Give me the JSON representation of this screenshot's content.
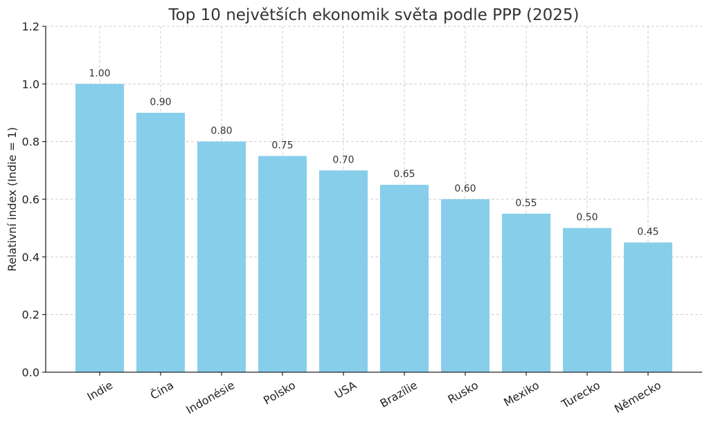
{
  "chart_data": {
    "type": "bar",
    "title": "Top 10 největších ekonomik světa podle PPP (2025)",
    "xlabel": "",
    "ylabel": "Relativní index (Indie = 1)",
    "categories": [
      "Indie",
      "Čína",
      "Indonésie",
      "Polsko",
      "USA",
      "Brazílie",
      "Rusko",
      "Mexiko",
      "Turecko",
      "Německo"
    ],
    "values": [
      1.0,
      0.9,
      0.8,
      0.75,
      0.7,
      0.65,
      0.6,
      0.55,
      0.5,
      0.45
    ],
    "data_labels": [
      "1.00",
      "0.90",
      "0.80",
      "0.75",
      "0.70",
      "0.65",
      "0.60",
      "0.55",
      "0.50",
      "0.45"
    ],
    "ylim": [
      0,
      1.2
    ],
    "yticks": [
      0.0,
      0.2,
      0.4,
      0.6,
      0.8,
      1.0,
      1.2
    ],
    "ytick_labels": [
      "0.0",
      "0.2",
      "0.4",
      "0.6",
      "0.8",
      "1.0",
      "1.2"
    ],
    "grid": true,
    "bar_color": "#87CEEB"
  }
}
